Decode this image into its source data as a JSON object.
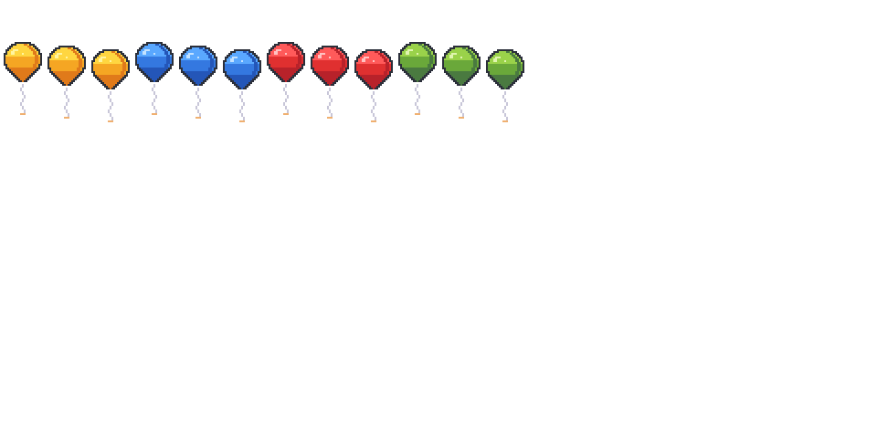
{
  "sprite_sheet": {
    "background": "#ffffff",
    "outline_color": "#2b2f3a",
    "string_color": "#c8c6d8",
    "tassel_color": "#f0b070",
    "palettes": {
      "orange": {
        "light": "#ffd640",
        "mid": "#f5a623",
        "dark": "#e07a1a",
        "shine": "#fff4a0"
      },
      "blue": {
        "light": "#5aa8ff",
        "mid": "#3478e0",
        "dark": "#2456b8",
        "shine": "#c4e2ff"
      },
      "red": {
        "light": "#ff5a5a",
        "mid": "#e03030",
        "dark": "#b8222a",
        "shine": "#ffc2c2"
      },
      "green": {
        "light": "#9ad24a",
        "mid": "#6aa83a",
        "dark": "#4a7a40",
        "shine": "#e0f5b0"
      }
    },
    "balloons": [
      {
        "name": "balloon-orange-1",
        "color": "orange",
        "frame": 1
      },
      {
        "name": "balloon-orange-2",
        "color": "orange",
        "frame": 2
      },
      {
        "name": "balloon-orange-3",
        "color": "orange",
        "frame": 3
      },
      {
        "name": "balloon-blue-1",
        "color": "blue",
        "frame": 1
      },
      {
        "name": "balloon-blue-2",
        "color": "blue",
        "frame": 2
      },
      {
        "name": "balloon-blue-3",
        "color": "blue",
        "frame": 3
      },
      {
        "name": "balloon-red-1",
        "color": "red",
        "frame": 1
      },
      {
        "name": "balloon-red-2",
        "color": "red",
        "frame": 2
      },
      {
        "name": "balloon-red-3",
        "color": "red",
        "frame": 3
      },
      {
        "name": "balloon-green-1",
        "color": "green",
        "frame": 1
      },
      {
        "name": "balloon-green-2",
        "color": "green",
        "frame": 2
      },
      {
        "name": "balloon-green-3",
        "color": "green",
        "frame": 3
      }
    ]
  }
}
